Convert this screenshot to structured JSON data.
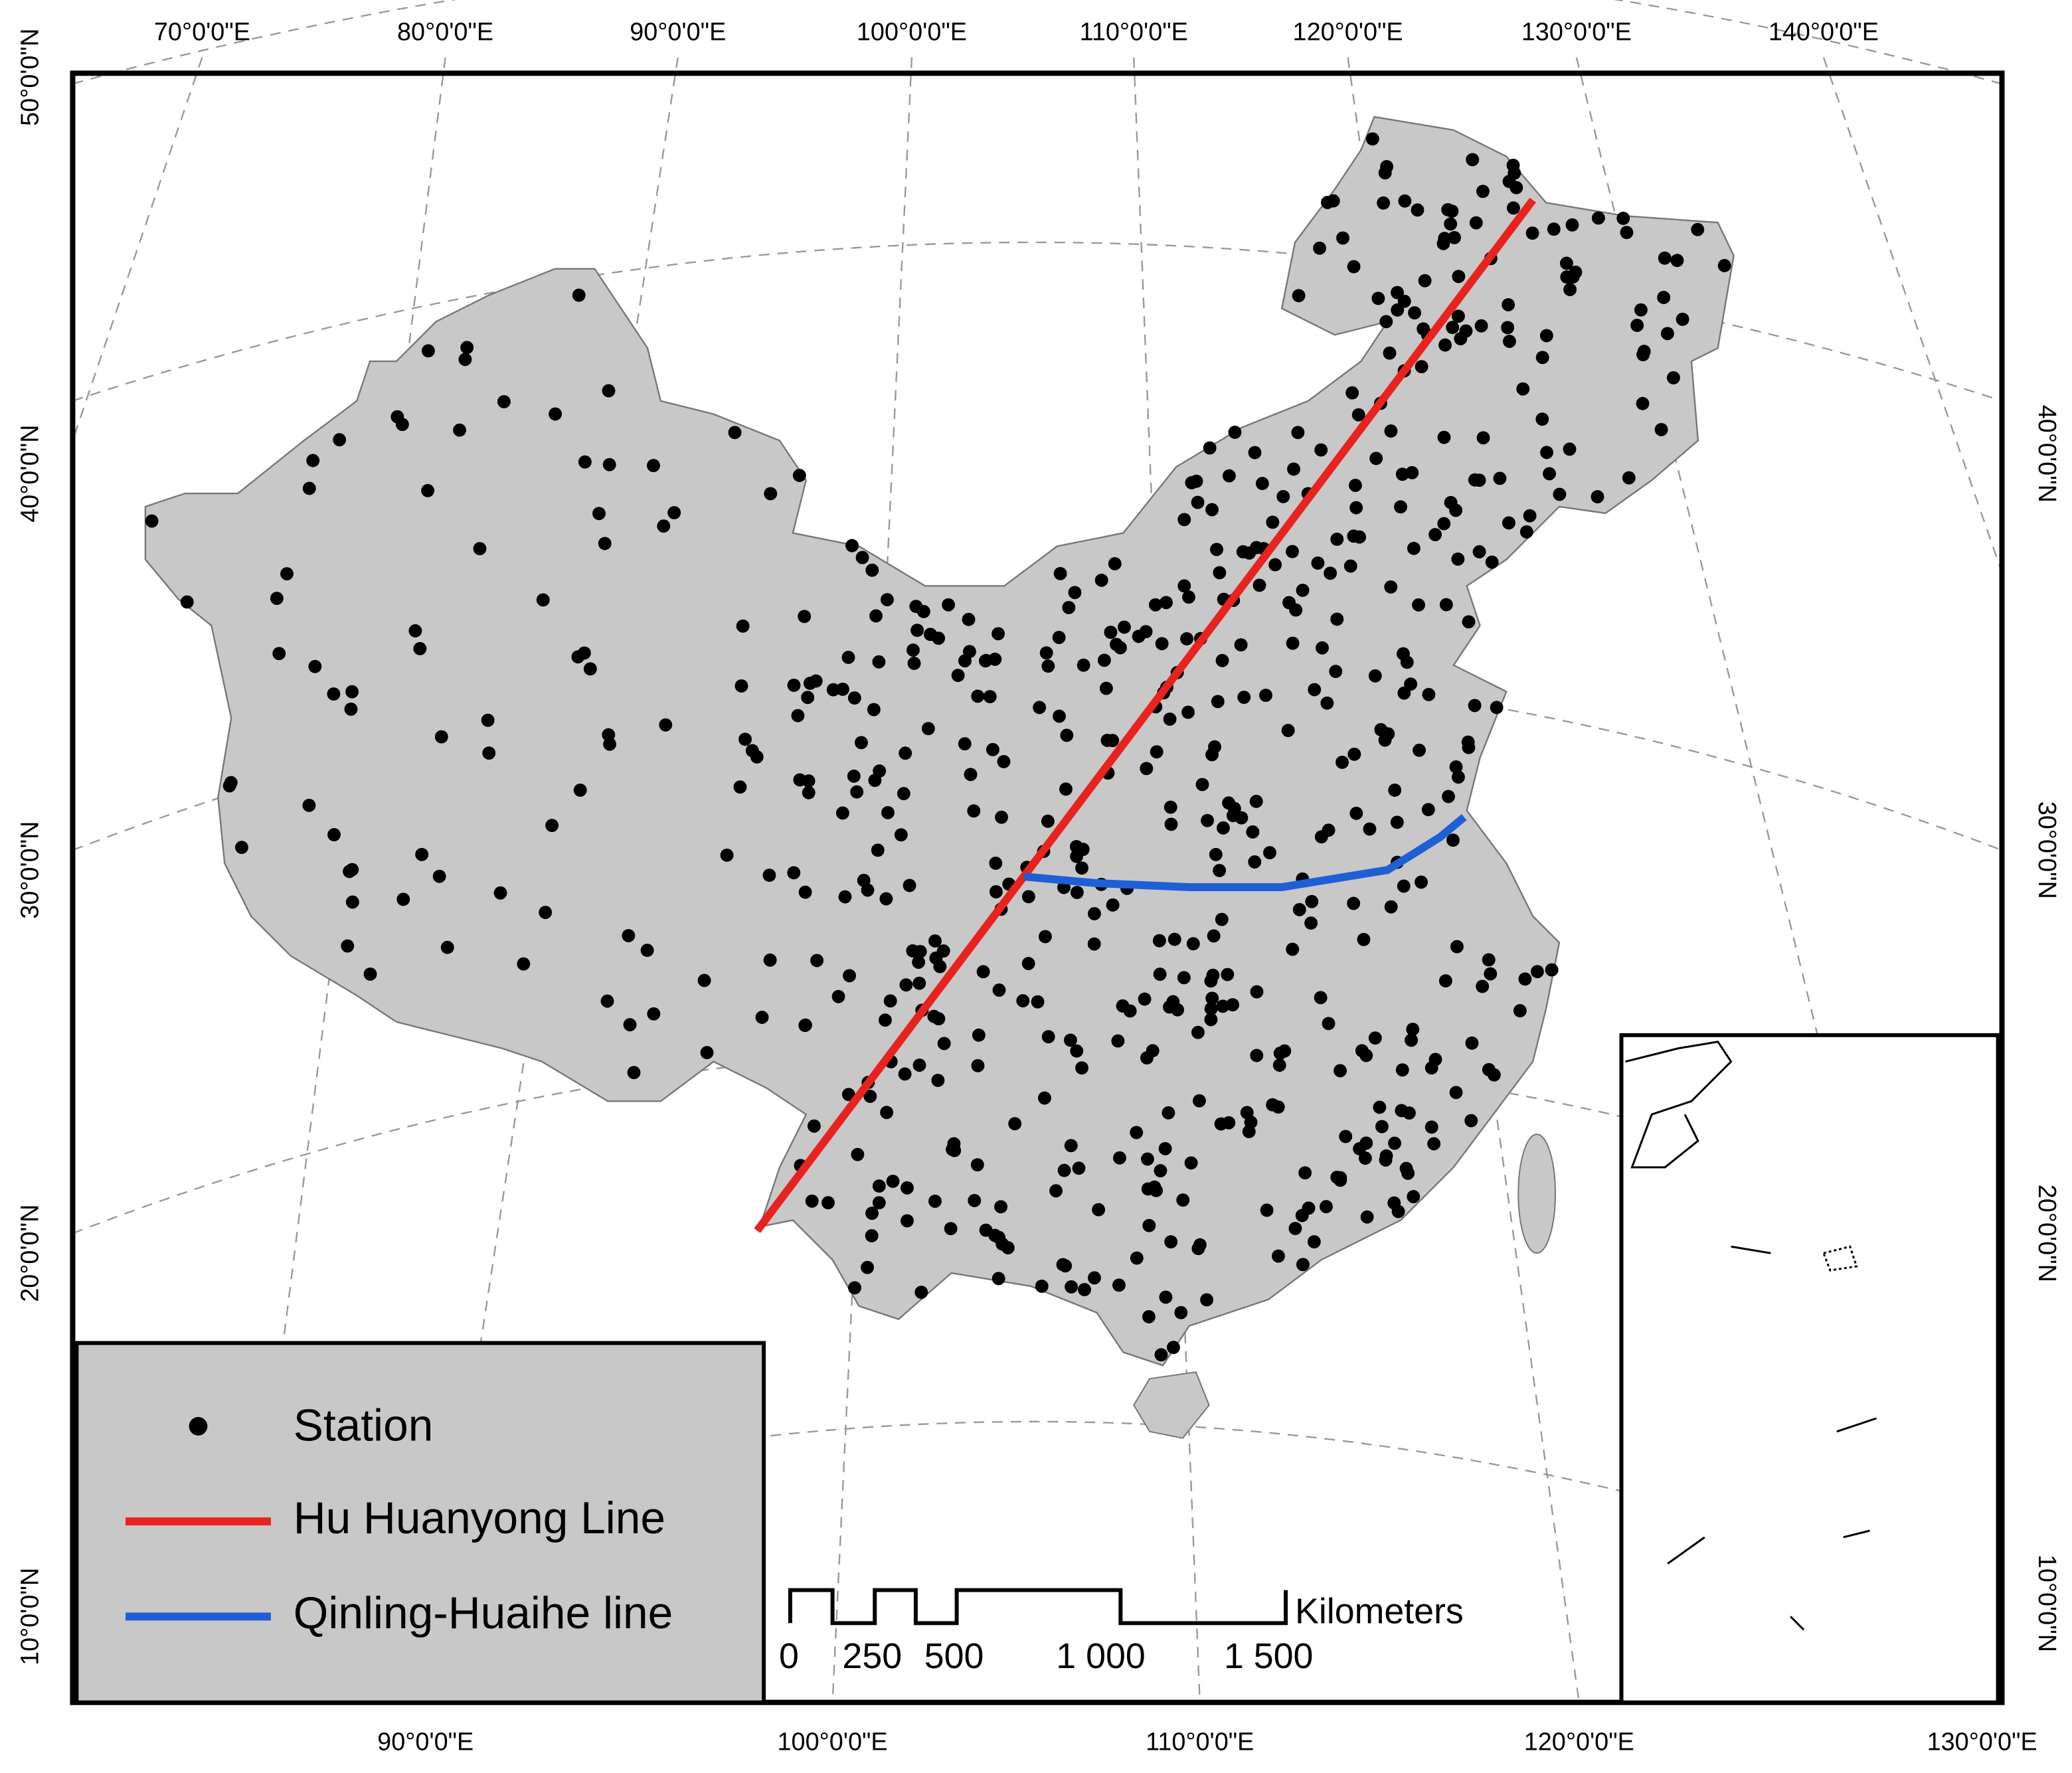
{
  "graticule": {
    "top": [
      "70°0'0\"E",
      "80°0'0\"E",
      "90°0'0\"E",
      "100°0'0\"E",
      "110°0'0\"E",
      "120°0'0\"E",
      "130°0'0\"E",
      "140°0'0\"E"
    ],
    "bottom": [
      "90°0'0\"E",
      "100°0'0\"E",
      "110°0'0\"E",
      "120°0'0\"E",
      "130°0'0\"E"
    ],
    "left": [
      "50°0'0\"N",
      "40°0'0\"N",
      "30°0'0\"N",
      "20°0'0\"N",
      "10°0'0\"N"
    ],
    "right": [
      "40°0'0\"N",
      "30°0'0\"N",
      "20°0'0\"N",
      "10°0'0\"N"
    ]
  },
  "legend": {
    "items": [
      "Station",
      "Hu Huanyong Line",
      "Qinling-Huaihe line"
    ]
  },
  "scale_bar": {
    "labels": [
      "0",
      "250",
      "500",
      "1 000",
      "1 500"
    ],
    "unit": "Kilometers"
  }
}
